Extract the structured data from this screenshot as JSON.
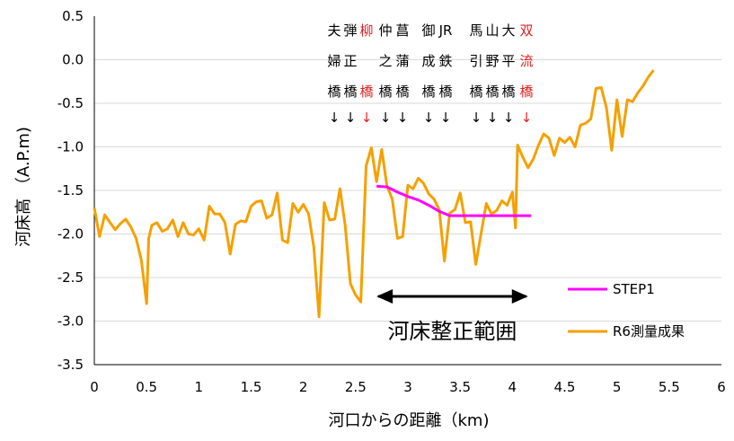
{
  "chart_data": {
    "type": "line",
    "xlabel": "河口からの距離（km)",
    "ylabel": "河床高 （A.P.m)",
    "xlim": [
      0,
      6
    ],
    "ylim": [
      -3.5,
      0.5
    ],
    "x_ticks": [
      "0",
      "0.5",
      "1",
      "1.5",
      "2",
      "2.5",
      "3",
      "3.5",
      "4",
      "4.5",
      "5",
      "5.5",
      "6"
    ],
    "y_ticks": [
      "0.5",
      "0.0",
      "-0.5",
      "-1.0",
      "-1.5",
      "-2.0",
      "-2.5",
      "-3.0",
      "-3.5"
    ],
    "grid": "horizontal",
    "legend_position": "bottom-right",
    "colors": {
      "r6": "#f5a000",
      "step1": "#ff00ff",
      "bridge_highlight": "#e02020"
    },
    "series": [
      {
        "name": "STEP1",
        "color": "#ff00ff",
        "x": [
          2.7,
          2.8,
          2.9,
          3.0,
          3.1,
          3.2,
          3.3,
          3.4,
          3.5,
          3.6,
          3.8,
          4.0,
          4.18
        ],
        "y": [
          -1.45,
          -1.46,
          -1.52,
          -1.57,
          -1.61,
          -1.67,
          -1.74,
          -1.79,
          -1.79,
          -1.79,
          -1.79,
          -1.79,
          -1.79
        ]
      },
      {
        "name": "R6測量成果",
        "color": "#f5a000",
        "x": [
          0,
          0.05,
          0.1,
          0.15,
          0.2,
          0.25,
          0.3,
          0.35,
          0.4,
          0.45,
          0.5,
          0.52,
          0.55,
          0.6,
          0.65,
          0.7,
          0.75,
          0.8,
          0.85,
          0.9,
          0.95,
          1.0,
          1.05,
          1.1,
          1.15,
          1.2,
          1.25,
          1.3,
          1.35,
          1.4,
          1.45,
          1.5,
          1.55,
          1.6,
          1.65,
          1.7,
          1.75,
          1.8,
          1.85,
          1.9,
          1.95,
          2.0,
          2.05,
          2.1,
          2.15,
          2.2,
          2.25,
          2.3,
          2.35,
          2.4,
          2.45,
          2.5,
          2.55,
          2.6,
          2.65,
          2.7,
          2.75,
          2.8,
          2.85,
          2.9,
          2.95,
          3.0,
          3.05,
          3.1,
          3.15,
          3.2,
          3.25,
          3.3,
          3.35,
          3.4,
          3.45,
          3.5,
          3.55,
          3.6,
          3.65,
          3.7,
          3.75,
          3.8,
          3.85,
          3.9,
          3.95,
          4.0,
          4.03,
          4.05,
          4.1,
          4.15,
          4.2,
          4.25,
          4.3,
          4.35,
          4.4,
          4.45,
          4.5,
          4.55,
          4.6,
          4.65,
          4.7,
          4.75,
          4.8,
          4.85,
          4.9,
          4.95,
          5.0,
          5.05,
          5.1,
          5.15,
          5.2,
          5.25,
          5.3,
          5.35
        ],
        "y": [
          -1.7,
          -2.03,
          -1.78,
          -1.87,
          -1.95,
          -1.88,
          -1.83,
          -1.92,
          -2.05,
          -2.3,
          -2.8,
          -2.05,
          -1.9,
          -1.87,
          -1.97,
          -1.94,
          -1.84,
          -2.03,
          -1.87,
          -2.0,
          -2.01,
          -1.94,
          -2.07,
          -1.68,
          -1.77,
          -1.77,
          -1.87,
          -2.23,
          -1.89,
          -1.85,
          -1.86,
          -1.68,
          -1.63,
          -1.62,
          -1.82,
          -1.78,
          -1.53,
          -2.07,
          -2.1,
          -1.65,
          -1.75,
          -1.66,
          -1.77,
          -2.15,
          -2.95,
          -1.64,
          -1.84,
          -1.83,
          -1.48,
          -1.9,
          -2.57,
          -2.7,
          -2.78,
          -1.22,
          -1.01,
          -1.4,
          -1.03,
          -1.45,
          -1.6,
          -2.05,
          -2.03,
          -1.44,
          -1.48,
          -1.36,
          -1.42,
          -1.54,
          -1.6,
          -1.72,
          -2.31,
          -1.76,
          -1.72,
          -1.53,
          -1.87,
          -1.86,
          -2.35,
          -2.0,
          -1.65,
          -1.77,
          -1.73,
          -1.62,
          -1.67,
          -1.52,
          -1.93,
          -0.98,
          -1.12,
          -1.24,
          -1.14,
          -0.98,
          -0.85,
          -0.9,
          -1.1,
          -0.9,
          -0.95,
          -0.89,
          -1.0,
          -0.75,
          -0.73,
          -0.68,
          -0.33,
          -0.32,
          -0.55,
          -1.04,
          -0.46,
          -0.88,
          -0.46,
          -0.48,
          -0.38,
          -0.3,
          -0.2,
          -0.12
        ]
      }
    ],
    "bridge_rows": [
      {
        "cols": [
          "夫",
          "弾",
          "柳",
          "仲",
          "菖",
          "御",
          "JR",
          "馬",
          "山",
          "大",
          "双"
        ]
      },
      {
        "cols": [
          "婦",
          "正",
          "",
          "之",
          "蒲",
          "成",
          "鉄",
          "引",
          "野",
          "平",
          "流"
        ]
      },
      {
        "cols": [
          "橋",
          "橋",
          "橋",
          "橋",
          "橋",
          "橋",
          "橋",
          "橋",
          "橋",
          "橋",
          "橋"
        ]
      },
      {
        "cols": [
          "↓",
          "↓",
          "↓",
          "↓",
          "↓",
          "↓",
          "↓",
          "↓",
          "↓",
          "↓",
          "↓"
        ]
      }
    ],
    "bridge_red_cols": [
      2,
      10
    ],
    "range_annotation": {
      "label": "河床整正範囲",
      "from_km": 2.7,
      "to_km": 4.15
    }
  }
}
